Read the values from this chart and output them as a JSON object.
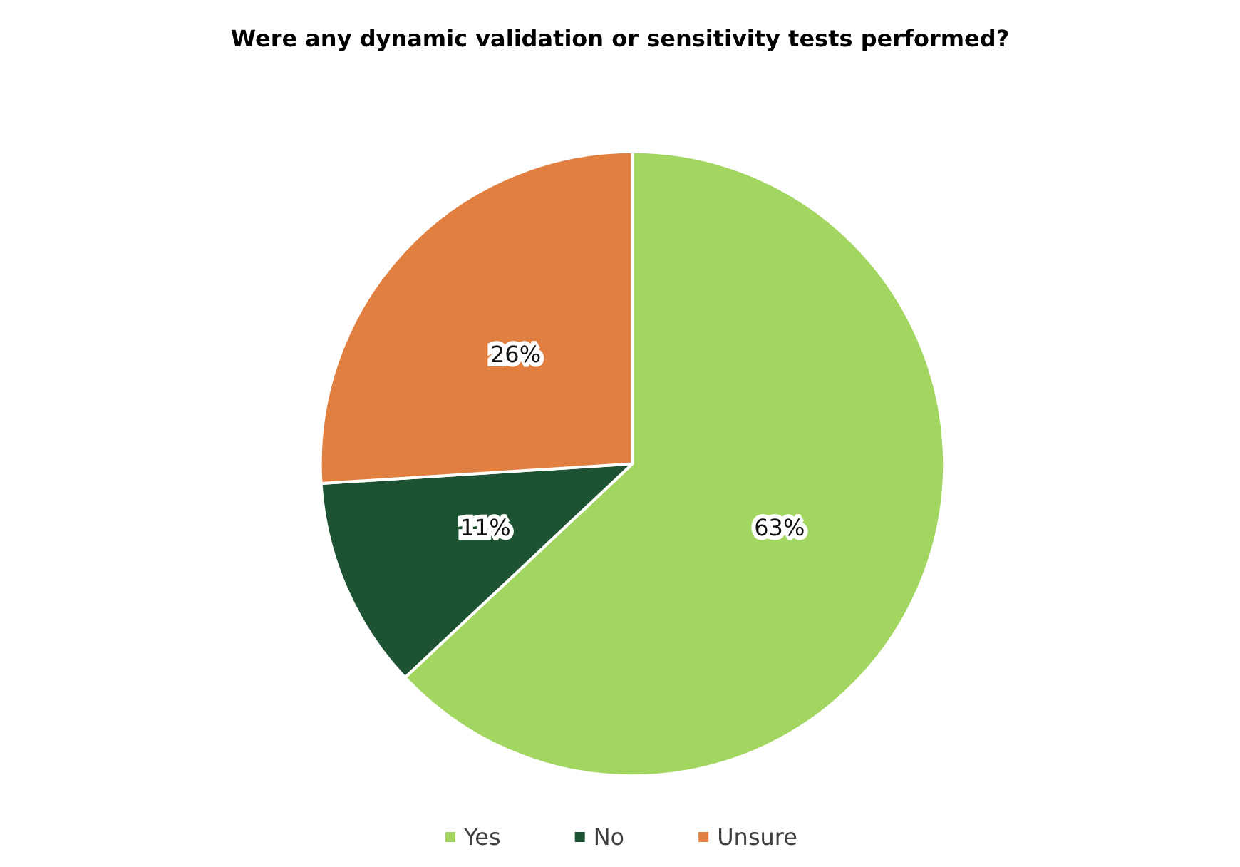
{
  "chart_data": {
    "type": "pie",
    "title": "Were any dynamic validation or sensitivity tests performed?",
    "categories": [
      "Yes",
      "No",
      "Unsure"
    ],
    "values": [
      63,
      11,
      26
    ],
    "colors": [
      "#a2d661",
      "#1d5233",
      "#e07f3f"
    ],
    "value_labels": [
      "63%",
      "11%",
      "26%"
    ],
    "legend": "bottom"
  }
}
